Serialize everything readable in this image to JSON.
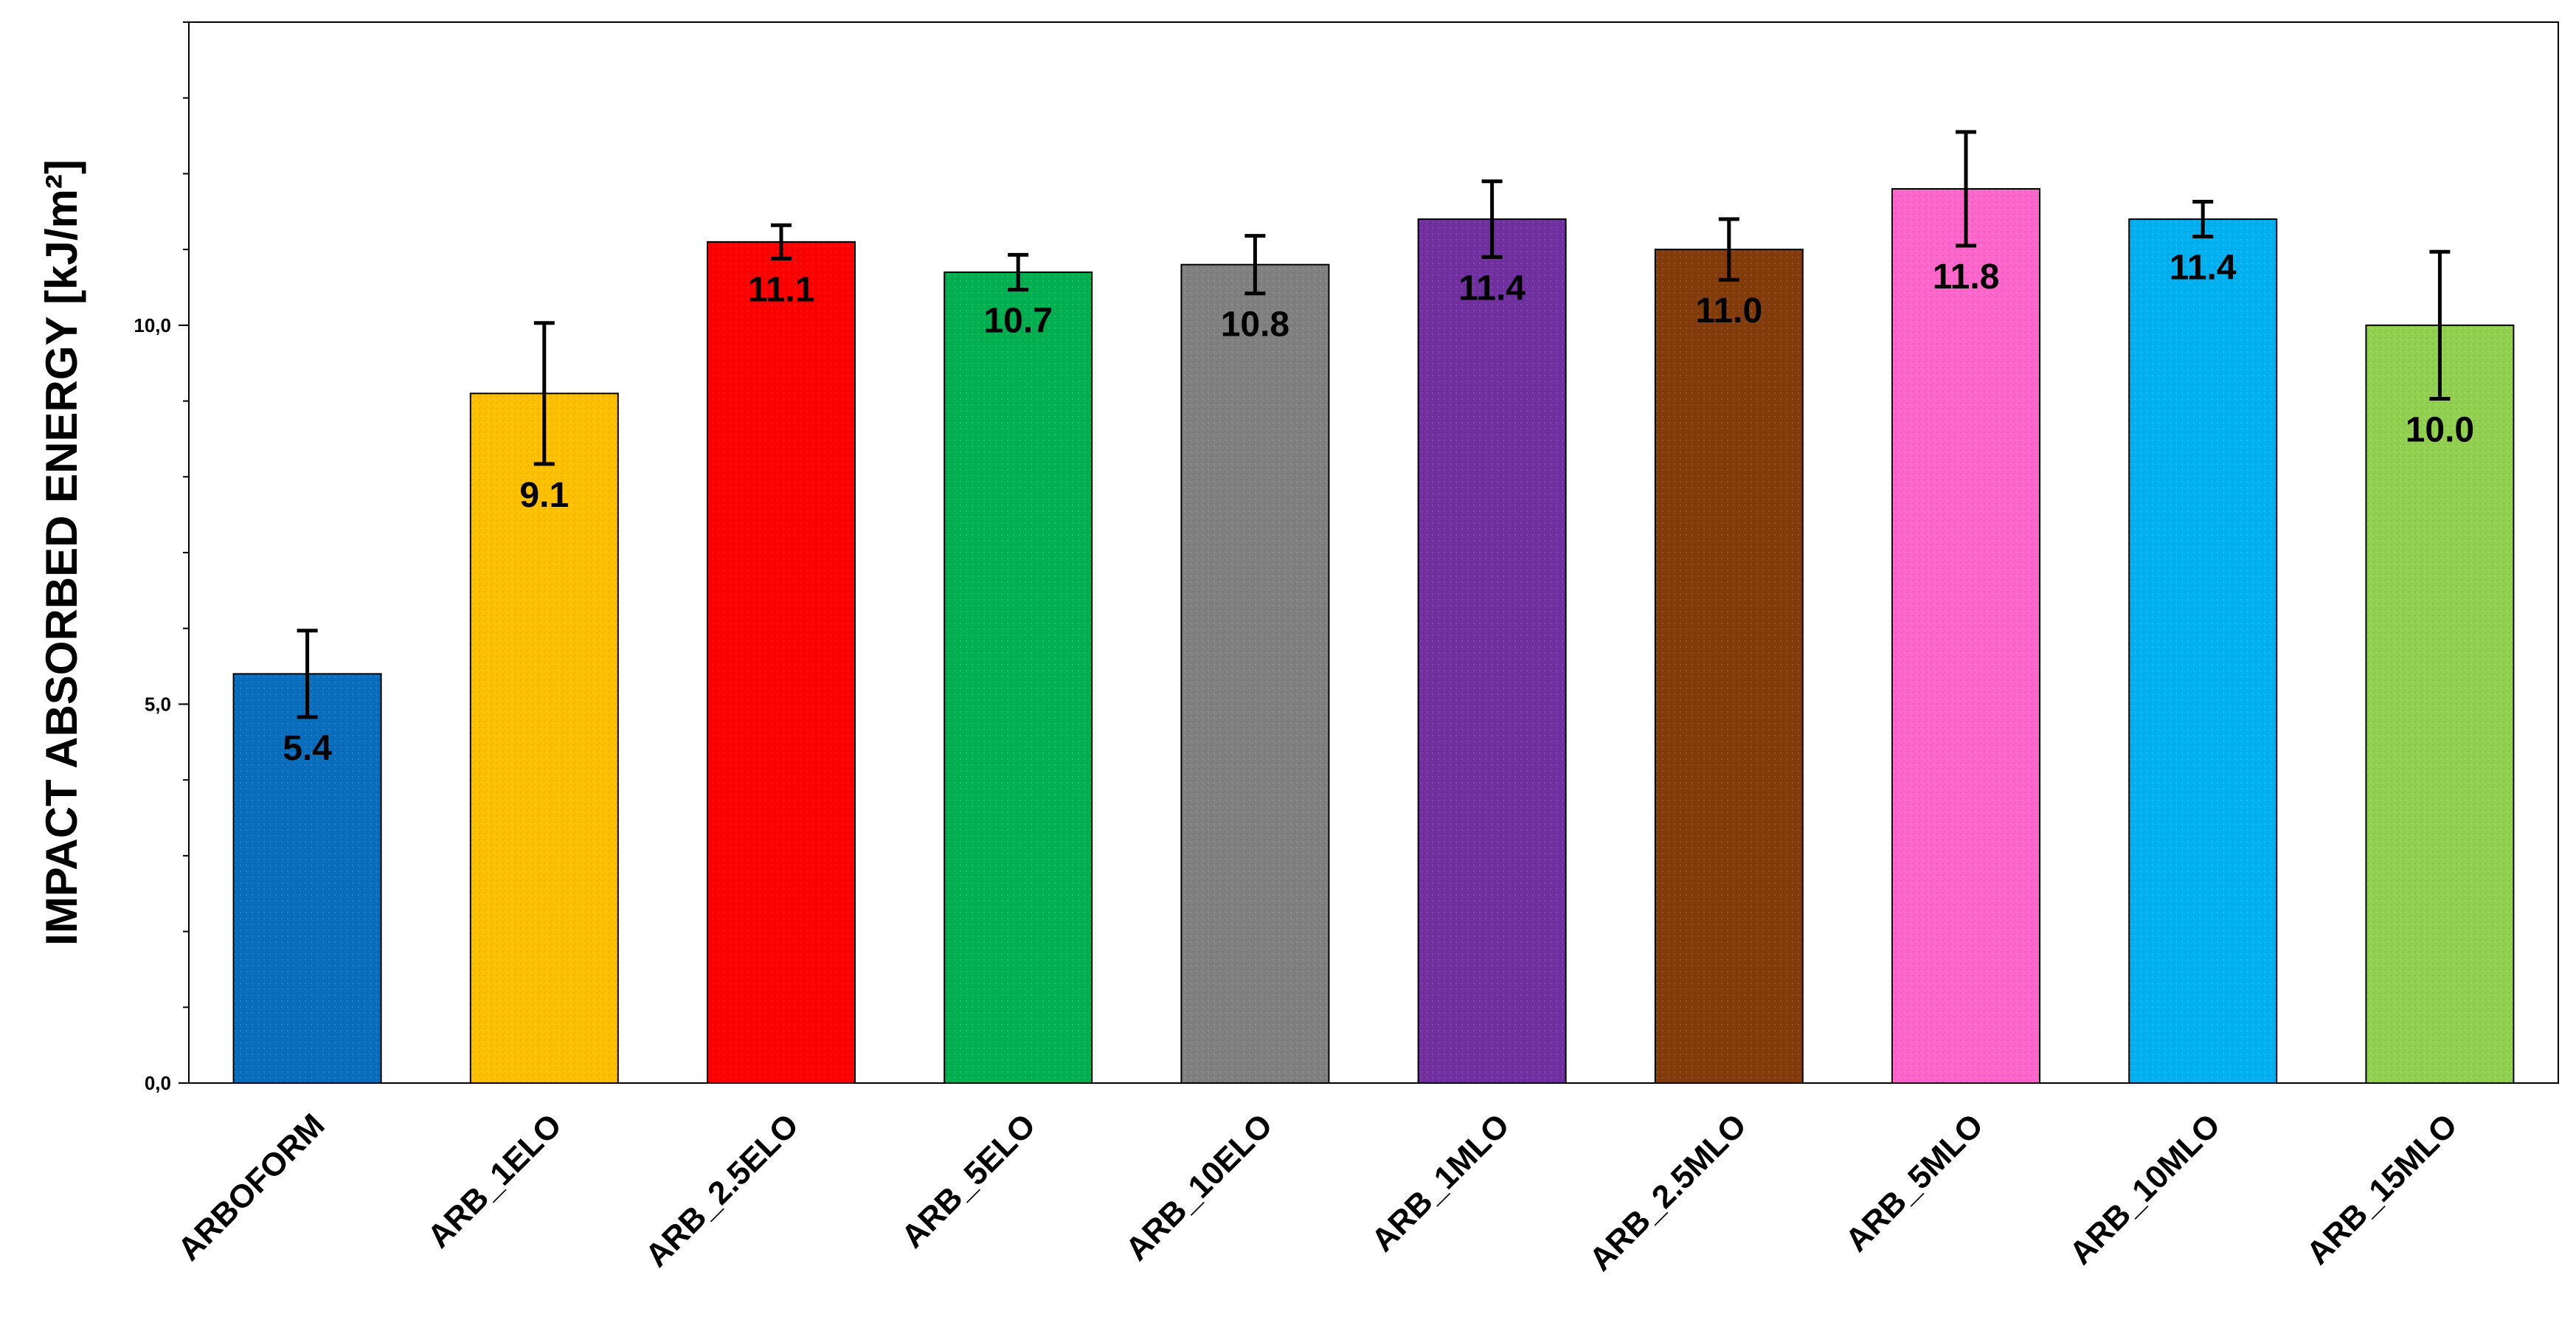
{
  "chart_data": {
    "type": "bar",
    "ylabel": "IMPACT ABSORBED ENERGY  [kJ/m²]",
    "ylim": [
      0,
      14
    ],
    "yticks": [
      0,
      5,
      10
    ],
    "ytick_labels": [
      "0,0",
      "5,0",
      "10,0"
    ],
    "grid": false,
    "categories": [
      "ARBOFORM",
      "ARB_1ELO",
      "ARB_2.5ELO",
      "ARB_5ELO",
      "ARB_10ELO",
      "ARB_1MLO",
      "ARB_2.5MLO",
      "ARB_5MLO",
      "ARB_10MLO",
      "ARB_15MLO"
    ],
    "values": [
      5.4,
      9.1,
      11.1,
      10.7,
      10.8,
      11.4,
      11.0,
      11.8,
      11.4,
      10.0
    ],
    "value_labels": [
      "5.4",
      "9.1",
      "11.1",
      "10.7",
      "10.8",
      "11.4",
      "11.0",
      "11.8",
      "11.4",
      "10.0"
    ],
    "errors": [
      0.57,
      0.93,
      0.22,
      0.23,
      0.38,
      0.5,
      0.4,
      0.75,
      0.23,
      0.97
    ],
    "colors": [
      "#0a6ebd",
      "#ffc000",
      "#ff0000",
      "#00b050",
      "#808080",
      "#7030a0",
      "#843c0c",
      "#ff66cc",
      "#00b0f0",
      "#92d050"
    ]
  }
}
